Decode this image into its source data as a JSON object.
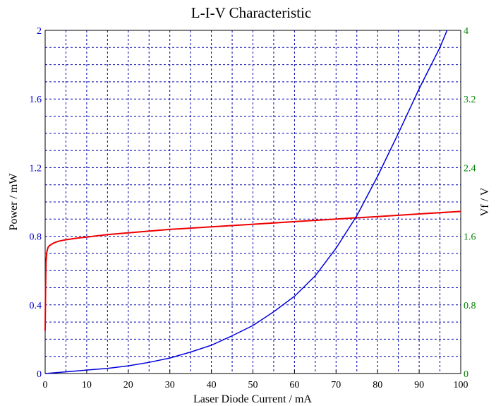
{
  "chart_data": {
    "type": "line",
    "title": "L-I-V Characteristic",
    "xlabel": "Laser Diode Current / mA",
    "ylabel_left": "Power / mW",
    "ylabel_right": "Vf / V",
    "xlim": [
      0,
      100
    ],
    "ylim_left": [
      0,
      2
    ],
    "ylim_right": [
      0,
      4
    ],
    "x_ticks": [
      "0",
      "10",
      "20",
      "30",
      "40",
      "50",
      "60",
      "70",
      "80",
      "90",
      "100"
    ],
    "y_left_ticks": [
      "0",
      "0.4",
      "0.8",
      "1.2",
      "1.6",
      "2"
    ],
    "y_right_ticks": [
      "0",
      "0.8",
      "1.6",
      "2.4",
      "3.2",
      "4"
    ],
    "grid": true,
    "colors": {
      "power": "#0000dd",
      "voltage": "#ee0000",
      "left_axis": "#0000cc",
      "right_axis": "#008000",
      "grid": "#0000aa"
    },
    "series": [
      {
        "axis": "left",
        "x": [
          0,
          5,
          10,
          15,
          20,
          25,
          30,
          35,
          40,
          45,
          50,
          55,
          60,
          65,
          70,
          75,
          80,
          85,
          90,
          95,
          96.7
        ],
        "values": [
          0.0,
          0.01,
          0.02,
          0.03,
          0.045,
          0.065,
          0.09,
          0.125,
          0.165,
          0.22,
          0.28,
          0.36,
          0.45,
          0.57,
          0.73,
          0.92,
          1.15,
          1.4,
          1.66,
          1.9,
          2.0
        ]
      },
      {
        "axis": "right",
        "x": [
          0,
          0.1,
          0.2,
          0.4,
          0.7,
          1,
          2,
          3,
          5,
          8,
          10,
          15,
          20,
          30,
          40,
          50,
          60,
          70,
          80,
          90,
          100
        ],
        "values": [
          0.5,
          1.0,
          1.3,
          1.42,
          1.47,
          1.49,
          1.52,
          1.54,
          1.56,
          1.58,
          1.59,
          1.62,
          1.64,
          1.68,
          1.71,
          1.74,
          1.77,
          1.8,
          1.83,
          1.86,
          1.89
        ]
      }
    ]
  }
}
